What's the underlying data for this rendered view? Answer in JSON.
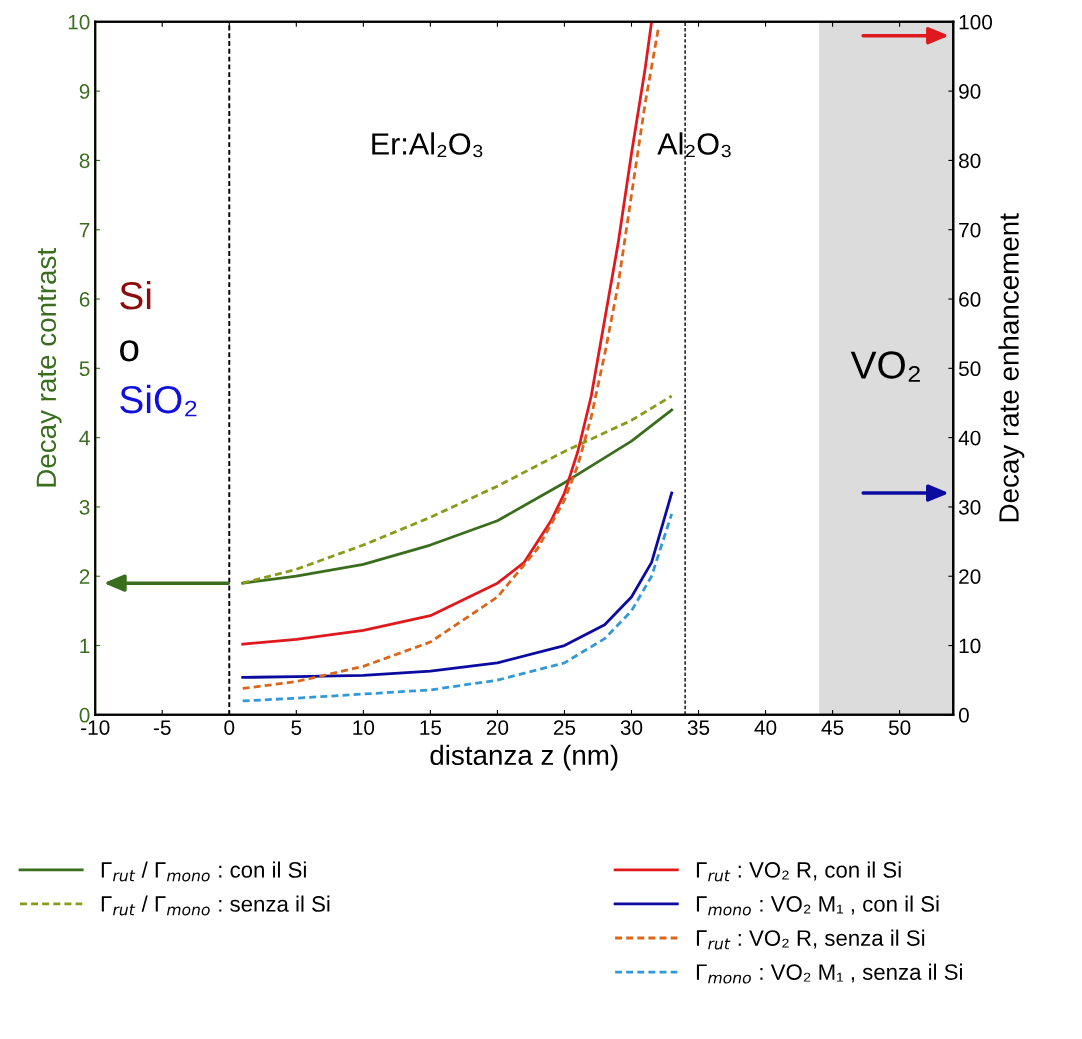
{
  "chart_data": {
    "type": "line",
    "xlabel": "distanza z (nm)",
    "ylabel": "Decay rate contrast",
    "y2label": "Decay rate enhancement",
    "xlim": [
      -10,
      54
    ],
    "xticks": [
      -10,
      -5,
      0,
      5,
      10,
      15,
      20,
      25,
      30,
      35,
      40,
      45,
      50
    ],
    "ylim": [
      0,
      10
    ],
    "yticks": [
      0,
      1,
      2,
      3,
      4,
      5,
      6,
      7,
      8,
      9,
      10
    ],
    "y2lim": [
      0,
      100
    ],
    "y2ticks": [
      0,
      10,
      20,
      30,
      40,
      50,
      60,
      70,
      80,
      90,
      100
    ],
    "grid": false,
    "legend": "bottom",
    "marker": "none",
    "series": [
      {
        "name": "Γ$_{rut}$ / Γ$_{mono}$ : con il Si",
        "color": "#3a6e1e",
        "line_style": "solid",
        "x": [
          1,
          5,
          10,
          15,
          20,
          25,
          30,
          33
        ],
        "values": [
          1.9,
          2.0,
          2.17,
          2.45,
          2.8,
          3.35,
          3.95,
          4.4
        ]
      },
      {
        "name": "Γ$_{rut}$ / Γ$_{mono}$ : senza il Si",
        "color": "#8a9a1a",
        "line_style": "dashed",
        "x": [
          1,
          5,
          10,
          15,
          20,
          25,
          30,
          33
        ],
        "values": [
          1.9,
          2.1,
          2.45,
          2.85,
          3.3,
          3.8,
          4.25,
          4.6
        ]
      },
      {
        "name": "Γ$_{rut}$ : VO₂ R, con il Si",
        "color": "#e0191e",
        "line_style": "solid",
        "axis": "y2",
        "x": [
          1,
          5,
          10,
          15,
          20,
          22,
          24,
          25,
          26,
          27,
          28,
          29,
          30,
          31,
          31.5
        ],
        "values": [
          10.2,
          10.9,
          12.2,
          14.3,
          19,
          22,
          28,
          32,
          38,
          46,
          57,
          68,
          81,
          93,
          100
        ]
      },
      {
        "name": "Γ$_{mono}$ : VO₂ M₁ , con il Si",
        "color": "#0b0ba0",
        "line_style": "solid",
        "axis": "y2",
        "x": [
          1,
          5,
          10,
          15,
          20,
          25,
          28,
          30,
          31.5,
          33
        ],
        "values": [
          5.4,
          5.5,
          5.7,
          6.3,
          7.5,
          10,
          13,
          17,
          22,
          32
        ]
      },
      {
        "name": "Γ$_{rut}$ : VO₂ R, senza il Si",
        "color": "#d9661a",
        "line_style": "dashed",
        "axis": "y2",
        "x": [
          1,
          5,
          10,
          15,
          20,
          23,
          25,
          26,
          27,
          28,
          29,
          30,
          31,
          32
        ],
        "values": [
          3.8,
          4.8,
          7,
          10.5,
          17,
          24,
          31,
          36,
          43,
          52,
          62,
          75,
          88,
          99
        ]
      },
      {
        "name": "Γ$_{mono}$ : VO₂ M₁ , senza il Si",
        "color": "#3399d6",
        "line_style": "dashed",
        "axis": "y2",
        "x": [
          1,
          5,
          10,
          15,
          20,
          25,
          28,
          30,
          31.5,
          33
        ],
        "values": [
          2,
          2.4,
          3,
          3.6,
          5,
          7.5,
          11,
          15,
          20,
          29
        ]
      }
    ],
    "ref_lines": [
      {
        "axis": "x",
        "value": 0,
        "color": "#000000",
        "line_style": "dashed"
      },
      {
        "axis": "x",
        "value": 34,
        "color": "#000000",
        "line_style": "dashed"
      }
    ],
    "bands": [
      {
        "axis": "x",
        "from": 44,
        "to": 54,
        "label": "VO₂",
        "color": "#dcdcdc"
      }
    ],
    "annotations": [
      "Er:Al₂O₃",
      "Al₂O₃",
      "Si",
      "o",
      "SiO₂"
    ]
  }
}
